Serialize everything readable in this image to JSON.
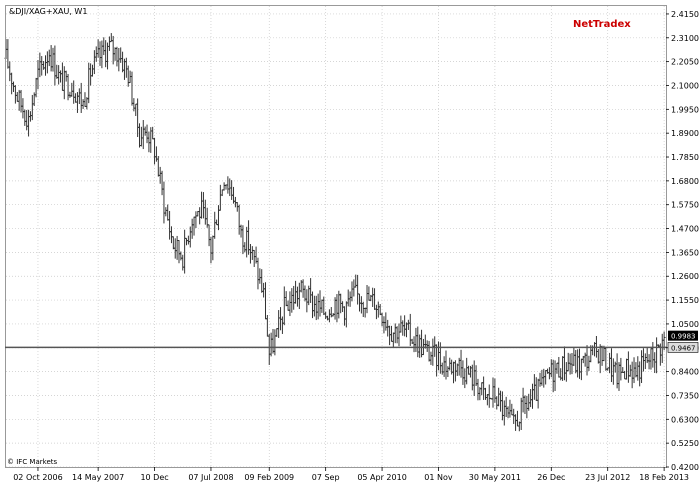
{
  "header": {
    "symbol_title": "&DJI/XAG+XAU, W1",
    "brand": "NetTradex"
  },
  "footer": {
    "copyright": "© IFC Markets"
  },
  "price_badges": [
    {
      "label": "0.9983",
      "value": 0.9983,
      "style": "dark"
    },
    {
      "label": "0.9467",
      "value": 0.9467,
      "style": "light"
    }
  ],
  "colors": {
    "background": "#ffffff",
    "bars": "#333333",
    "grid": "#c8c8c8",
    "hline": "#555555",
    "brand": "#cc0000"
  },
  "chart_data": {
    "type": "ohlc",
    "title": "&DJI/XAG+XAU, W1",
    "ylim": [
      0.42,
      2.45
    ],
    "y_ticks": [
      "2.4150",
      "2.3100",
      "2.2050",
      "2.1000",
      "1.9950",
      "1.8900",
      "1.7850",
      "1.6800",
      "1.5750",
      "1.4700",
      "1.3650",
      "1.2600",
      "1.1550",
      "1.0500",
      "0.9450",
      "0.8400",
      "0.7350",
      "0.6300",
      "0.5250",
      "0.4200"
    ],
    "x_ticks": [
      "02 Oct 2006",
      "14 May 2007",
      "10 Dec",
      "07 Jul 2008",
      "09 Feb 2009",
      "07 Sep",
      "05 Apr 2010",
      "01 Nov",
      "30 May 2011",
      "26 Dec",
      "23 Jul 2012",
      "18 Feb 2013"
    ],
    "x_start": "2006-06-05",
    "x_end": "2013-02-25",
    "horizontal_line": 0.9467,
    "grid": true,
    "legend": "none",
    "series": [
      {
        "points": [
          [
            "2006-06-05",
            2.22
          ],
          [
            "2006-07-17",
            2.05
          ],
          [
            "2006-08-28",
            1.95
          ],
          [
            "2006-10-02",
            2.15
          ],
          [
            "2006-11-13",
            2.25
          ],
          [
            "2006-12-25",
            2.12
          ],
          [
            "2007-02-05",
            2.1
          ],
          [
            "2007-03-19",
            2.02
          ],
          [
            "2007-04-16",
            2.16
          ],
          [
            "2007-05-14",
            2.22
          ],
          [
            "2007-06-25",
            2.27
          ],
          [
            "2007-07-30",
            2.24
          ],
          [
            "2007-09-03",
            2.15
          ],
          [
            "2007-10-15",
            1.88
          ],
          [
            "2007-11-12",
            1.9
          ],
          [
            "2007-12-10",
            1.82
          ],
          [
            "2008-01-14",
            1.58
          ],
          [
            "2008-02-18",
            1.4
          ],
          [
            "2008-03-24",
            1.35
          ],
          [
            "2008-04-28",
            1.52
          ],
          [
            "2008-06-02",
            1.55
          ],
          [
            "2008-06-23",
            1.45
          ],
          [
            "2008-07-07",
            1.38
          ],
          [
            "2008-08-04",
            1.58
          ],
          [
            "2008-08-25",
            1.7
          ],
          [
            "2008-09-29",
            1.62
          ],
          [
            "2008-10-27",
            1.45
          ],
          [
            "2008-11-24",
            1.4
          ],
          [
            "2008-12-22",
            1.3
          ],
          [
            "2009-01-19",
            1.18
          ],
          [
            "2009-02-09",
            0.92
          ],
          [
            "2009-03-09",
            1.0
          ],
          [
            "2009-04-06",
            1.12
          ],
          [
            "2009-05-04",
            1.16
          ],
          [
            "2009-06-08",
            1.2
          ],
          [
            "2009-07-13",
            1.15
          ],
          [
            "2009-08-10",
            1.12
          ],
          [
            "2009-09-07",
            1.1
          ],
          [
            "2009-10-12",
            1.15
          ],
          [
            "2009-11-16",
            1.12
          ],
          [
            "2009-12-21",
            1.18
          ],
          [
            "2010-02-01",
            1.16
          ],
          [
            "2010-03-08",
            1.15
          ],
          [
            "2010-04-05",
            1.1
          ],
          [
            "2010-05-10",
            1.02
          ],
          [
            "2010-06-14",
            1.03
          ],
          [
            "2010-07-19",
            1.0
          ],
          [
            "2010-08-23",
            0.96
          ],
          [
            "2010-09-27",
            0.92
          ],
          [
            "2010-11-01",
            0.9
          ],
          [
            "2010-12-06",
            0.86
          ],
          [
            "2011-01-10",
            0.88
          ],
          [
            "2011-02-14",
            0.84
          ],
          [
            "2011-03-21",
            0.8
          ],
          [
            "2011-04-25",
            0.72
          ],
          [
            "2011-05-30",
            0.74
          ],
          [
            "2011-07-04",
            0.66
          ],
          [
            "2011-08-08",
            0.6
          ],
          [
            "2011-09-12",
            0.68
          ],
          [
            "2011-10-17",
            0.72
          ],
          [
            "2011-11-21",
            0.78
          ],
          [
            "2011-12-26",
            0.84
          ],
          [
            "2012-01-30",
            0.86
          ],
          [
            "2012-03-05",
            0.88
          ],
          [
            "2012-04-09",
            0.87
          ],
          [
            "2012-05-14",
            0.9
          ],
          [
            "2012-06-18",
            0.93
          ],
          [
            "2012-07-23",
            0.88
          ],
          [
            "2012-08-27",
            0.82
          ],
          [
            "2012-10-01",
            0.86
          ],
          [
            "2012-11-05",
            0.84
          ],
          [
            "2012-12-10",
            0.88
          ],
          [
            "2013-01-14",
            0.92
          ],
          [
            "2013-02-18",
            0.98
          ]
        ]
      }
    ]
  }
}
